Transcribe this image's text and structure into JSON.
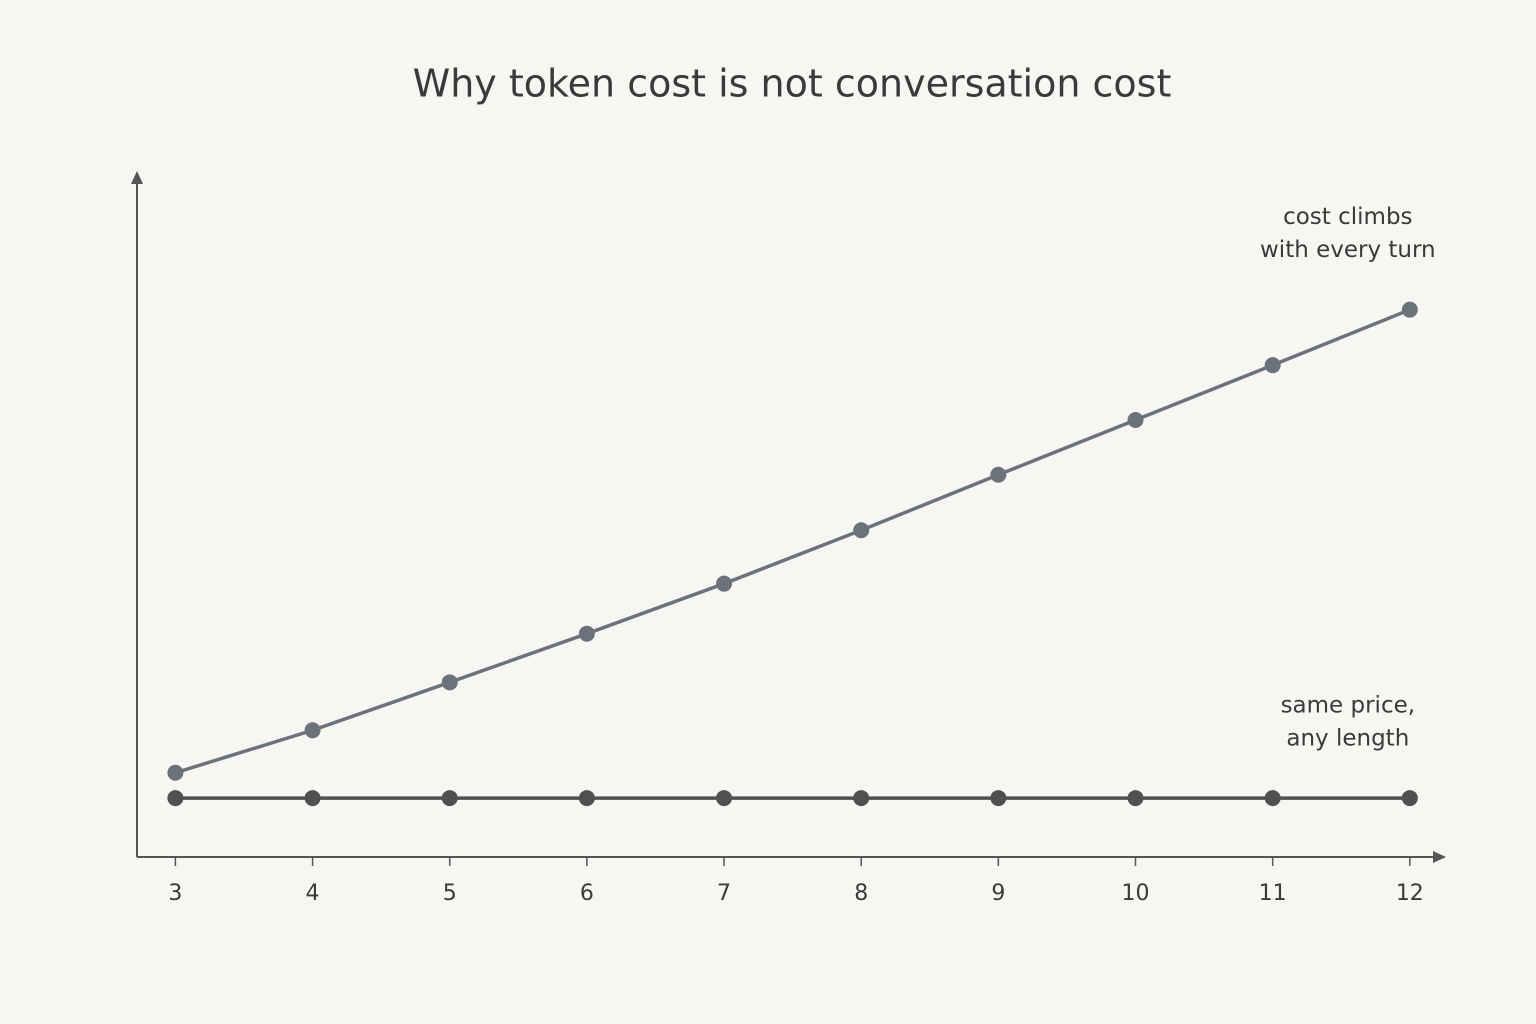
{
  "chart_data": {
    "type": "line",
    "title": "Why token cost is not conversation cost",
    "x": [
      3,
      4,
      5,
      6,
      7,
      8,
      9,
      10,
      11,
      12
    ],
    "series": [
      {
        "color": "#6c727c",
        "values": [
          12.3,
          18.5,
          25.5,
          32.6,
          39.9,
          47.7,
          55.8,
          63.8,
          71.8,
          79.9
        ]
      },
      {
        "color": "#505050",
        "values": [
          8.6,
          8.6,
          8.6,
          8.6,
          8.6,
          8.6,
          8.6,
          8.6,
          8.6,
          8.6
        ]
      }
    ],
    "annotations": [
      [
        "cost climbs",
        "with every turn"
      ],
      [
        "same price,",
        "any length"
      ]
    ],
    "xlim": [
      2.72,
      12.22
    ],
    "xticks": [
      3,
      4,
      5,
      6,
      7,
      8,
      9,
      10,
      11,
      12
    ],
    "ylim": [
      0,
      100
    ]
  }
}
